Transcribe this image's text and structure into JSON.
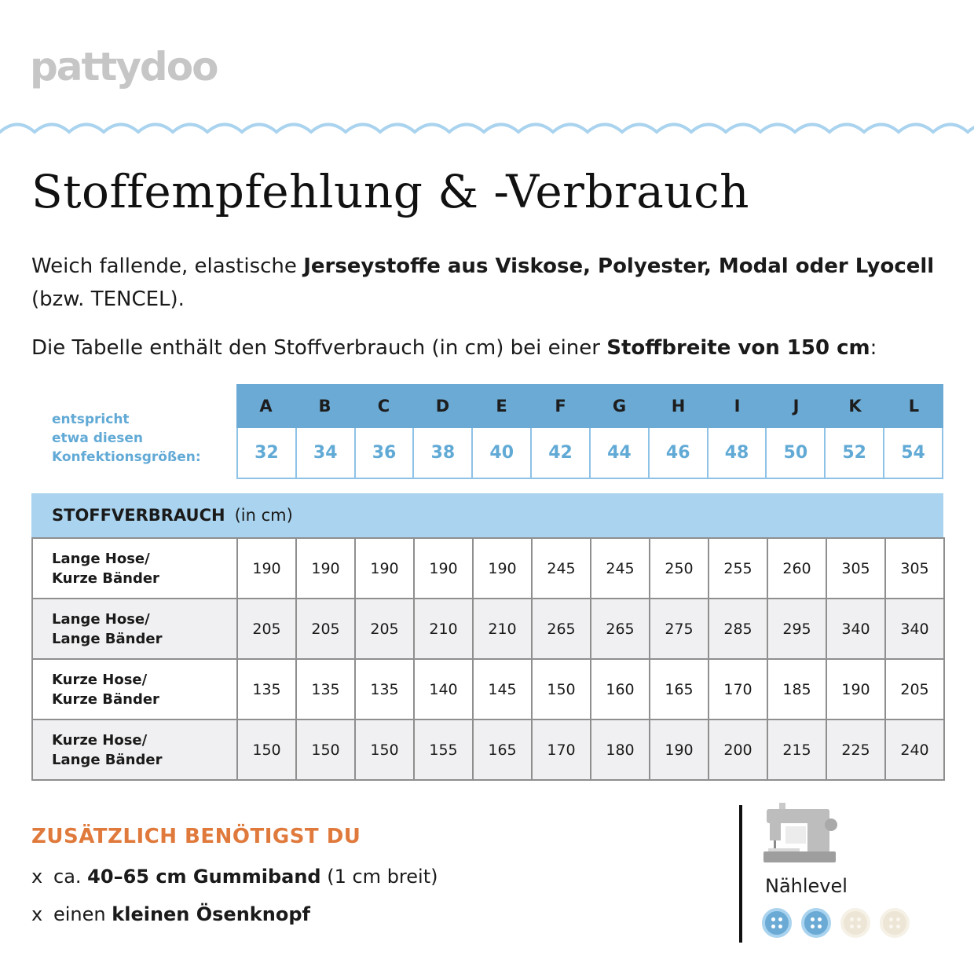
{
  "brand": {
    "logo_text": "pattydoo"
  },
  "title": "Stoffempfehlung & -Verbrauch",
  "intro": {
    "p1_plain_start": "Weich fallende, elastische ",
    "p1_bold": "Jerseystoffe aus Viskose, Polyester, Modal oder Lyocell",
    "p1_plain_end": " (bzw. TENCEL).",
    "p2_plain": "Die Tabelle enthält den Stoffverbrauch (in cm) bei einer ",
    "p2_bold": "Stoffbreite von 150 cm",
    "p2_end": ":"
  },
  "size_table": {
    "note_lines": [
      "entspricht",
      "etwa diesen",
      "Konfektionsgrößen:"
    ],
    "letters": [
      "A",
      "B",
      "C",
      "D",
      "E",
      "F",
      "G",
      "H",
      "I",
      "J",
      "K",
      "L"
    ],
    "sizes": [
      "32",
      "34",
      "36",
      "38",
      "40",
      "42",
      "44",
      "46",
      "48",
      "50",
      "52",
      "54"
    ]
  },
  "consumption": {
    "header_bold": "STOFFVERBRAUCH",
    "header_unit": "(in cm)",
    "rows": [
      {
        "label_line1": "Lange Hose/",
        "label_line2": "Kurze Bänder",
        "values": [
          "190",
          "190",
          "190",
          "190",
          "190",
          "245",
          "245",
          "250",
          "255",
          "260",
          "305",
          "305"
        ]
      },
      {
        "label_line1": "Lange Hose/",
        "label_line2": "Lange Bänder",
        "values": [
          "205",
          "205",
          "205",
          "210",
          "210",
          "265",
          "265",
          "275",
          "285",
          "295",
          "340",
          "340"
        ]
      },
      {
        "label_line1": "Kurze Hose/",
        "label_line2": "Kurze Bänder",
        "values": [
          "135",
          "135",
          "135",
          "140",
          "145",
          "150",
          "160",
          "165",
          "170",
          "185",
          "190",
          "205"
        ]
      },
      {
        "label_line1": "Kurze Hose/",
        "label_line2": "Lange Bänder",
        "values": [
          "150",
          "150",
          "150",
          "155",
          "165",
          "170",
          "180",
          "190",
          "200",
          "215",
          "225",
          "240"
        ]
      }
    ]
  },
  "additional": {
    "title": "ZUSÄTZLICH BENÖTIGST DU",
    "bullet": "x",
    "items": [
      {
        "pre": "ca. ",
        "bold": "40–65 cm Gummiband",
        "post": " (1 cm breit)"
      },
      {
        "pre": "einen ",
        "bold": "kleinen Ösenknopf",
        "post": ""
      }
    ]
  },
  "level": {
    "label": "Nählevel",
    "icon": "sewing-machine-icon",
    "filled": 2,
    "total": 4,
    "colors": {
      "filled": "#6aaad5",
      "empty": "#ede5d5"
    }
  },
  "colors": {
    "accent_blue": "#6aaad5",
    "light_blue": "#a9d3ee",
    "orange": "#e07a3c",
    "logo_gray": "#c6c6c6"
  }
}
